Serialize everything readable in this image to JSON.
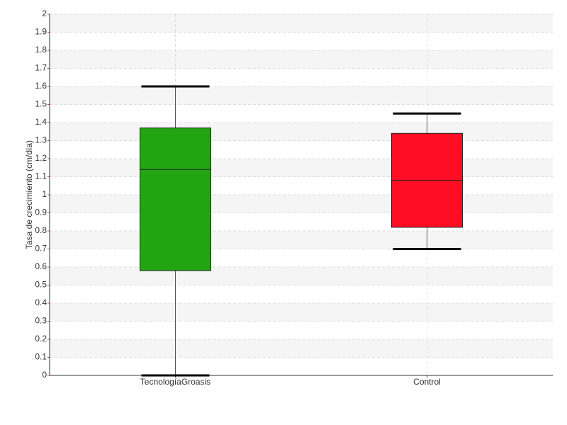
{
  "chart_data": {
    "type": "box",
    "y_label": "Tasa de crecimiento (cm/día)",
    "categories": [
      "TecnologíaGroasis",
      "Control"
    ],
    "boxes": [
      {
        "min": 0,
        "q1": 0.58,
        "median": 1.14,
        "q3": 1.37,
        "max": 1.6,
        "color": "#22a511"
      },
      {
        "min": 0.7,
        "q1": 0.82,
        "median": 1.08,
        "q3": 1.34,
        "max": 1.45,
        "color": "#ff0d25"
      }
    ],
    "ylim": [
      0,
      2
    ],
    "yticks": [
      0,
      0.1,
      0.2,
      0.3,
      0.4,
      0.5,
      0.6,
      0.7,
      0.8,
      0.9,
      1,
      1.1,
      1.2,
      1.3,
      1.4,
      1.5,
      1.6,
      1.7,
      1.8,
      1.9,
      2
    ],
    "grid": true
  }
}
